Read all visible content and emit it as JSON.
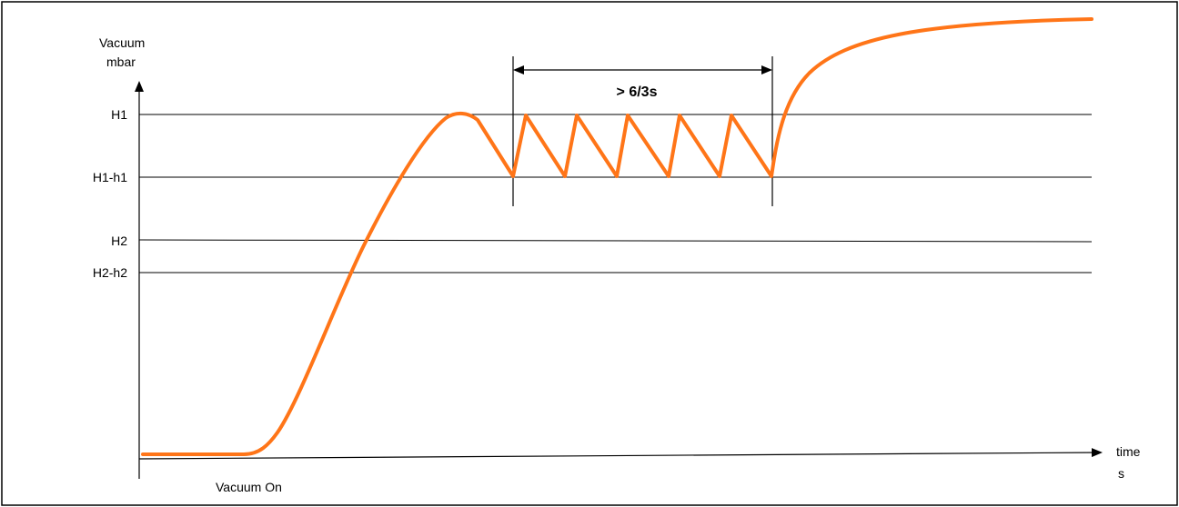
{
  "y_axis": {
    "title_line1": "Vacuum",
    "title_line2": "mbar"
  },
  "x_axis": {
    "title_line1": "time",
    "title_line2": "s"
  },
  "levels": [
    {
      "label": "H1"
    },
    {
      "label": "H1-h1"
    },
    {
      "label": "H2"
    },
    {
      "label": "H2-h2"
    }
  ],
  "annotations": {
    "vacuum_on": "Vacuum On",
    "interval": "> 6/3s"
  },
  "colors": {
    "curve": "#ff7518",
    "lines": "#000000",
    "frame": "#000000"
  }
}
